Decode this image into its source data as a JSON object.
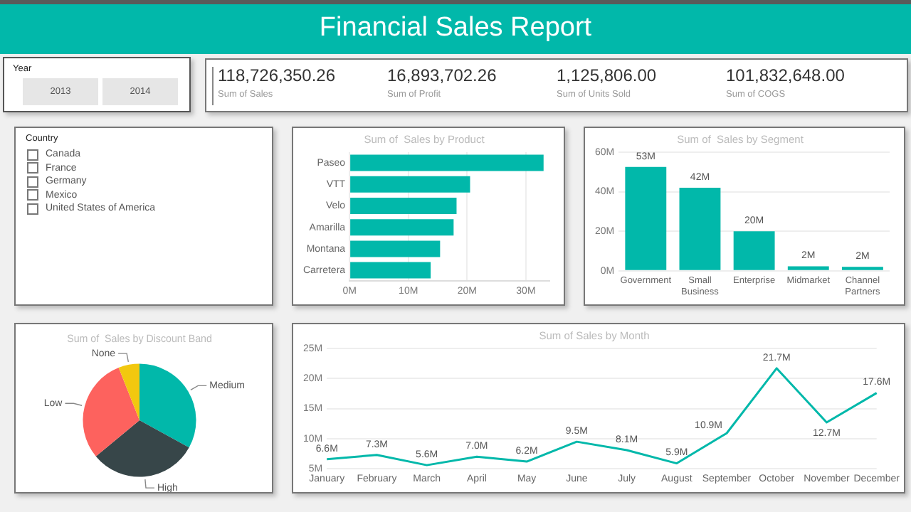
{
  "chart_data": [
    {
      "type": "other",
      "title": "Financial Sales Report",
      "annotations": [
        "118,726,350.26",
        "Sum of Sales",
        "16,893,702.26",
        "Sum of Profit",
        "1,125,806.00",
        "Sum of Units Sold",
        "101,832,648.00",
        "Sum of COGS"
      ]
    },
    {
      "type": "other",
      "title": "Year",
      "annotations": [
        "2013",
        "2014"
      ]
    },
    {
      "type": "other",
      "title": "Country",
      "annotations": [
        "Canada",
        "France",
        "Germany",
        "Mexico",
        "United States of America"
      ]
    },
    {
      "type": "bar",
      "orientation": "horizontal",
      "title": "Sum of  Sales by Product",
      "categories": [
        "Paseo",
        "VTT",
        "Velo",
        "Amarilla",
        "Montana",
        "Carretera"
      ],
      "values": [
        33.0,
        20.5,
        18.2,
        17.7,
        15.4,
        13.8
      ],
      "color": "#01b8aa",
      "xlim": [
        0,
        34
      ],
      "xticks": [
        {
          "value": 0,
          "label": "0M"
        },
        {
          "value": 10,
          "label": "10M"
        },
        {
          "value": 20,
          "label": "20M"
        },
        {
          "value": 30,
          "label": "30M"
        }
      ],
      "grid": "x"
    },
    {
      "type": "bar",
      "title": "Sum of  Sales by Segment",
      "categories": [
        "Government",
        "Small Business",
        "Enterprise",
        "Midmarket",
        "Channel Partners"
      ],
      "values": [
        52.5,
        42,
        20,
        2.3,
        2.0
      ],
      "value_labels": [
        "53M",
        "42M",
        "20M",
        "2M",
        "2M"
      ],
      "color": "#01b8aa",
      "ylim": [
        0,
        60
      ],
      "yticks": [
        {
          "value": 0,
          "label": "0M"
        },
        {
          "value": 20,
          "label": "20M"
        },
        {
          "value": 40,
          "label": "40M"
        },
        {
          "value": 60,
          "label": "60M"
        }
      ],
      "grid": "y"
    },
    {
      "type": "pie",
      "title": "Sum of  Sales by Discount Band",
      "categories": [
        "Medium",
        "High",
        "Low",
        "None"
      ],
      "values": [
        33,
        31,
        30,
        6
      ],
      "colors": [
        "#01b8aa",
        "#374649",
        "#fd625e",
        "#f2c80f"
      ]
    },
    {
      "type": "line",
      "title": "Sum of Sales by Month",
      "categories": [
        "January",
        "February",
        "March",
        "April",
        "May",
        "June",
        "July",
        "August",
        "September",
        "October",
        "November",
        "December"
      ],
      "values": [
        6.6,
        7.3,
        5.6,
        7.0,
        6.2,
        9.5,
        8.1,
        5.9,
        10.9,
        21.7,
        12.7,
        17.6
      ],
      "value_labels": [
        "6.6M",
        "7.3M",
        "5.6M",
        "7.0M",
        "6.2M",
        "9.5M",
        "8.1M",
        "5.9M",
        "10.9M",
        "21.7M",
        "12.7M",
        "17.6M"
      ],
      "color": "#01b8aa",
      "marker": "none",
      "line_style": "solid",
      "ylim": [
        5,
        25
      ],
      "yticks": [
        {
          "value": 5,
          "label": "5M"
        },
        {
          "value": 10,
          "label": "10M"
        },
        {
          "value": 15,
          "label": "15M"
        },
        {
          "value": 20,
          "label": "20M"
        },
        {
          "value": 25,
          "label": "25M"
        }
      ],
      "grid": "y"
    }
  ]
}
